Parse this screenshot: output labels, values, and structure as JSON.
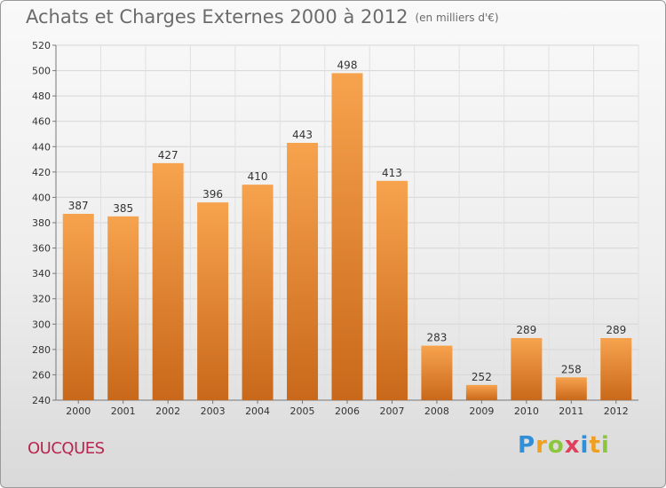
{
  "title": "Achats et Charges Externes 2000 à 2012",
  "subtitle": "(en milliers d'€)",
  "city": "OUCQUES",
  "brand": {
    "letters": [
      "P",
      "r",
      "o",
      "x",
      "i",
      "t",
      "i"
    ],
    "colors": [
      "#2f8fd8",
      "#f0a020",
      "#8cc63f",
      "#e0405a",
      "#2f8fd8",
      "#f0a020",
      "#8cc63f"
    ]
  },
  "colors": {
    "bar_top": "#f7a34e",
    "bar_bottom": "#c9681a",
    "title": "#6b6b6b",
    "city": "#b8264f"
  },
  "chart_data": {
    "type": "bar",
    "categories": [
      "2000",
      "2001",
      "2002",
      "2003",
      "2004",
      "2005",
      "2006",
      "2007",
      "2008",
      "2009",
      "2010",
      "2011",
      "2012"
    ],
    "values": [
      387,
      385,
      427,
      396,
      410,
      443,
      498,
      413,
      283,
      252,
      289,
      258,
      289
    ],
    "ylim": [
      240,
      520
    ],
    "yticks": [
      240,
      260,
      280,
      300,
      320,
      340,
      360,
      380,
      400,
      420,
      440,
      460,
      480,
      500,
      520
    ],
    "grid": true,
    "title": "Achats et Charges Externes 2000 à 2012",
    "xlabel": "",
    "ylabel": ""
  }
}
